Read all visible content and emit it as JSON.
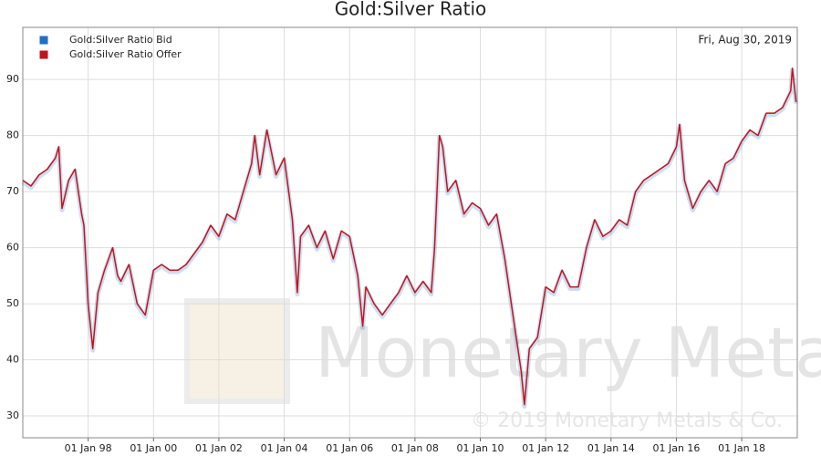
{
  "chart_data": {
    "type": "line",
    "title": "Gold:Silver Ratio",
    "annotation": "Fri, Aug 30, 2019",
    "watermark": "Monetary Metals",
    "copyright": "© 2019 Monetary Metals & Co.",
    "legend": "top-left",
    "grid": true,
    "x": [
      1996,
      1996.25,
      1996.5,
      1996.75,
      1997,
      1997.1,
      1997.2,
      1997.4,
      1997.6,
      1997.8,
      1997.87,
      1998,
      1998.14,
      1998.3,
      1998.5,
      1998.75,
      1998.9,
      1999,
      1999.25,
      1999.5,
      1999.75,
      2000,
      2000.25,
      2000.5,
      2000.75,
      2001,
      2001.25,
      2001.5,
      2001.75,
      2002,
      2002.25,
      2002.5,
      2002.75,
      2003,
      2003.1,
      2003.25,
      2003.47,
      2003.75,
      2004,
      2004.25,
      2004.4,
      2004.5,
      2004.75,
      2005,
      2005.25,
      2005.5,
      2005.75,
      2006,
      2006.25,
      2006.4,
      2006.5,
      2006.75,
      2007,
      2007.25,
      2007.5,
      2007.75,
      2008,
      2008.25,
      2008.5,
      2008.6,
      2008.75,
      2008.85,
      2009,
      2009.25,
      2009.5,
      2009.75,
      2010,
      2010.25,
      2010.5,
      2010.75,
      2011,
      2011.25,
      2011.35,
      2011.5,
      2011.75,
      2012,
      2012.25,
      2012.5,
      2012.75,
      2013,
      2013.25,
      2013.5,
      2013.75,
      2014,
      2014.25,
      2014.5,
      2014.75,
      2015,
      2015.25,
      2015.5,
      2015.75,
      2016,
      2016.1,
      2016.25,
      2016.5,
      2016.75,
      2017,
      2017.25,
      2017.5,
      2017.75,
      2018,
      2018.25,
      2018.5,
      2018.75,
      2019,
      2019.25,
      2019.5,
      2019.55,
      2019.66
    ],
    "series": [
      {
        "name": "Gold:Silver Ratio Bid",
        "color": "#1f6fc4",
        "values": [
          71.7,
          70.7,
          72.7,
          73.7,
          75.7,
          77.7,
          66.7,
          71.7,
          73.7,
          65.7,
          63.7,
          49.7,
          41.7,
          51.7,
          55.7,
          59.7,
          54.7,
          53.7,
          56.7,
          49.7,
          47.7,
          55.7,
          56.7,
          55.7,
          55.7,
          56.7,
          58.7,
          60.7,
          63.7,
          61.7,
          65.7,
          64.7,
          69.7,
          74.7,
          79.7,
          72.7,
          80.7,
          72.7,
          75.7,
          64.7,
          51.7,
          61.7,
          63.7,
          59.7,
          62.7,
          57.7,
          62.7,
          61.7,
          54.7,
          45.7,
          52.7,
          49.7,
          47.7,
          49.7,
          51.7,
          54.7,
          51.7,
          53.7,
          51.7,
          59.7,
          79.7,
          77.7,
          69.7,
          71.7,
          65.7,
          67.7,
          66.7,
          63.7,
          65.7,
          57.7,
          47.7,
          37.7,
          31.7,
          41.7,
          43.7,
          52.7,
          51.7,
          55.7,
          52.7,
          52.7,
          59.7,
          64.7,
          61.7,
          62.7,
          64.7,
          63.7,
          69.7,
          71.7,
          72.7,
          73.7,
          74.7,
          77.7,
          81.7,
          71.7,
          66.7,
          69.7,
          71.7,
          69.7,
          74.7,
          75.7,
          78.7,
          80.7,
          79.7,
          83.7,
          83.7,
          84.7,
          87.7,
          91.7,
          85.7
        ]
      },
      {
        "name": "Gold:Silver Ratio Offer",
        "color": "#c0141c",
        "values": [
          72,
          71,
          73,
          74,
          76,
          78,
          67,
          72,
          74,
          66,
          64,
          50,
          42,
          52,
          56,
          60,
          55,
          54,
          57,
          50,
          48,
          56,
          57,
          56,
          56,
          57,
          59,
          61,
          64,
          62,
          66,
          65,
          70,
          75,
          80,
          73,
          81,
          73,
          76,
          65,
          52,
          62,
          64,
          60,
          63,
          58,
          63,
          62,
          55,
          46,
          53,
          50,
          48,
          50,
          52,
          55,
          52,
          54,
          52,
          60,
          80,
          78,
          70,
          72,
          66,
          68,
          67,
          64,
          66,
          58,
          48,
          38,
          32,
          42,
          44,
          53,
          52,
          56,
          53,
          53,
          60,
          65,
          62,
          63,
          65,
          64,
          70,
          72,
          73,
          74,
          75,
          78,
          82,
          72,
          67,
          70,
          72,
          70,
          75,
          76,
          79,
          81,
          80,
          84,
          84,
          85,
          88,
          92,
          86
        ]
      }
    ],
    "xlim": [
      1996,
      2019.7
    ],
    "xticks": [
      {
        "value": 1998,
        "label": "01 Jan 98"
      },
      {
        "value": 2000,
        "label": "01 Jan 00"
      },
      {
        "value": 2002,
        "label": "01 Jan 02"
      },
      {
        "value": 2004,
        "label": "01 Jan 04"
      },
      {
        "value": 2006,
        "label": "01 Jan 06"
      },
      {
        "value": 2008,
        "label": "01 Jan 08"
      },
      {
        "value": 2010,
        "label": "01 Jan 10"
      },
      {
        "value": 2012,
        "label": "01 Jan 12"
      },
      {
        "value": 2014,
        "label": "01 Jan 14"
      },
      {
        "value": 2016,
        "label": "01 Jan 16"
      },
      {
        "value": 2018,
        "label": "01 Jan 18"
      }
    ],
    "ylim": [
      26.1,
      99.3
    ],
    "yticks": [
      30,
      40,
      50,
      60,
      70,
      80,
      90
    ]
  }
}
